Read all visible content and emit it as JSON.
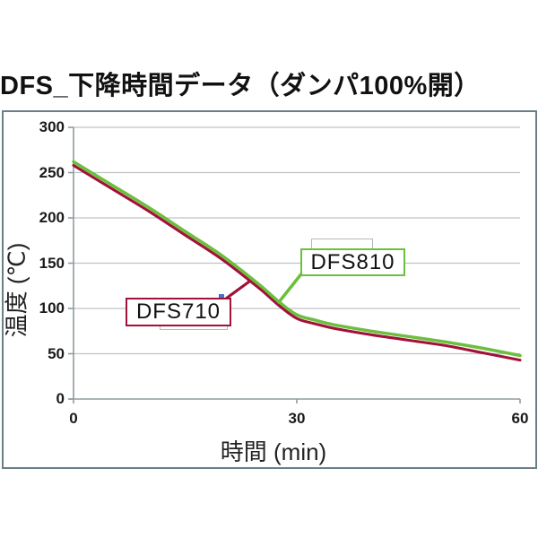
{
  "title": "DFS_下降時間データ（ダンパ100%開）",
  "chart_data": {
    "type": "line",
    "title": "DFS_下降時間データ（ダンパ100%開）",
    "xlabel": "時間 (min)",
    "ylabel": "温度 (℃)",
    "xlim": [
      0,
      60
    ],
    "ylim": [
      0,
      300
    ],
    "x_ticks": [
      0,
      30,
      60
    ],
    "y_ticks": [
      0,
      50,
      100,
      150,
      200,
      250,
      300
    ],
    "grid": true,
    "legend_position": "none",
    "x": [
      0,
      5,
      10,
      15,
      20,
      25,
      27.5,
      30,
      32.5,
      35,
      40,
      45,
      50,
      55,
      60
    ],
    "series": [
      {
        "name": "DFS810",
        "color": "#6cbf3e",
        "values": [
          262,
          237,
          212,
          185,
          158,
          126,
          108,
          93,
          87,
          82,
          75,
          69,
          63,
          56,
          48
        ]
      },
      {
        "name": "DFS710",
        "color": "#a11238",
        "values": [
          258,
          233,
          208,
          181,
          154,
          122,
          104,
          89,
          83,
          78,
          71,
          65,
          59,
          51,
          43
        ]
      }
    ],
    "annotations": [
      {
        "label": "DFS810",
        "border_color": "#6cbf3e"
      },
      {
        "label": "DFS710",
        "border_color": "#a11238"
      }
    ],
    "colors": {
      "gridline": "#bdc4c8",
      "axis": "#909ba0",
      "frame_border": "#6a7e88",
      "text": "#1a1a1a",
      "callout_bracket": "#b2b9bd",
      "blue_mark": "#4472c4"
    }
  }
}
